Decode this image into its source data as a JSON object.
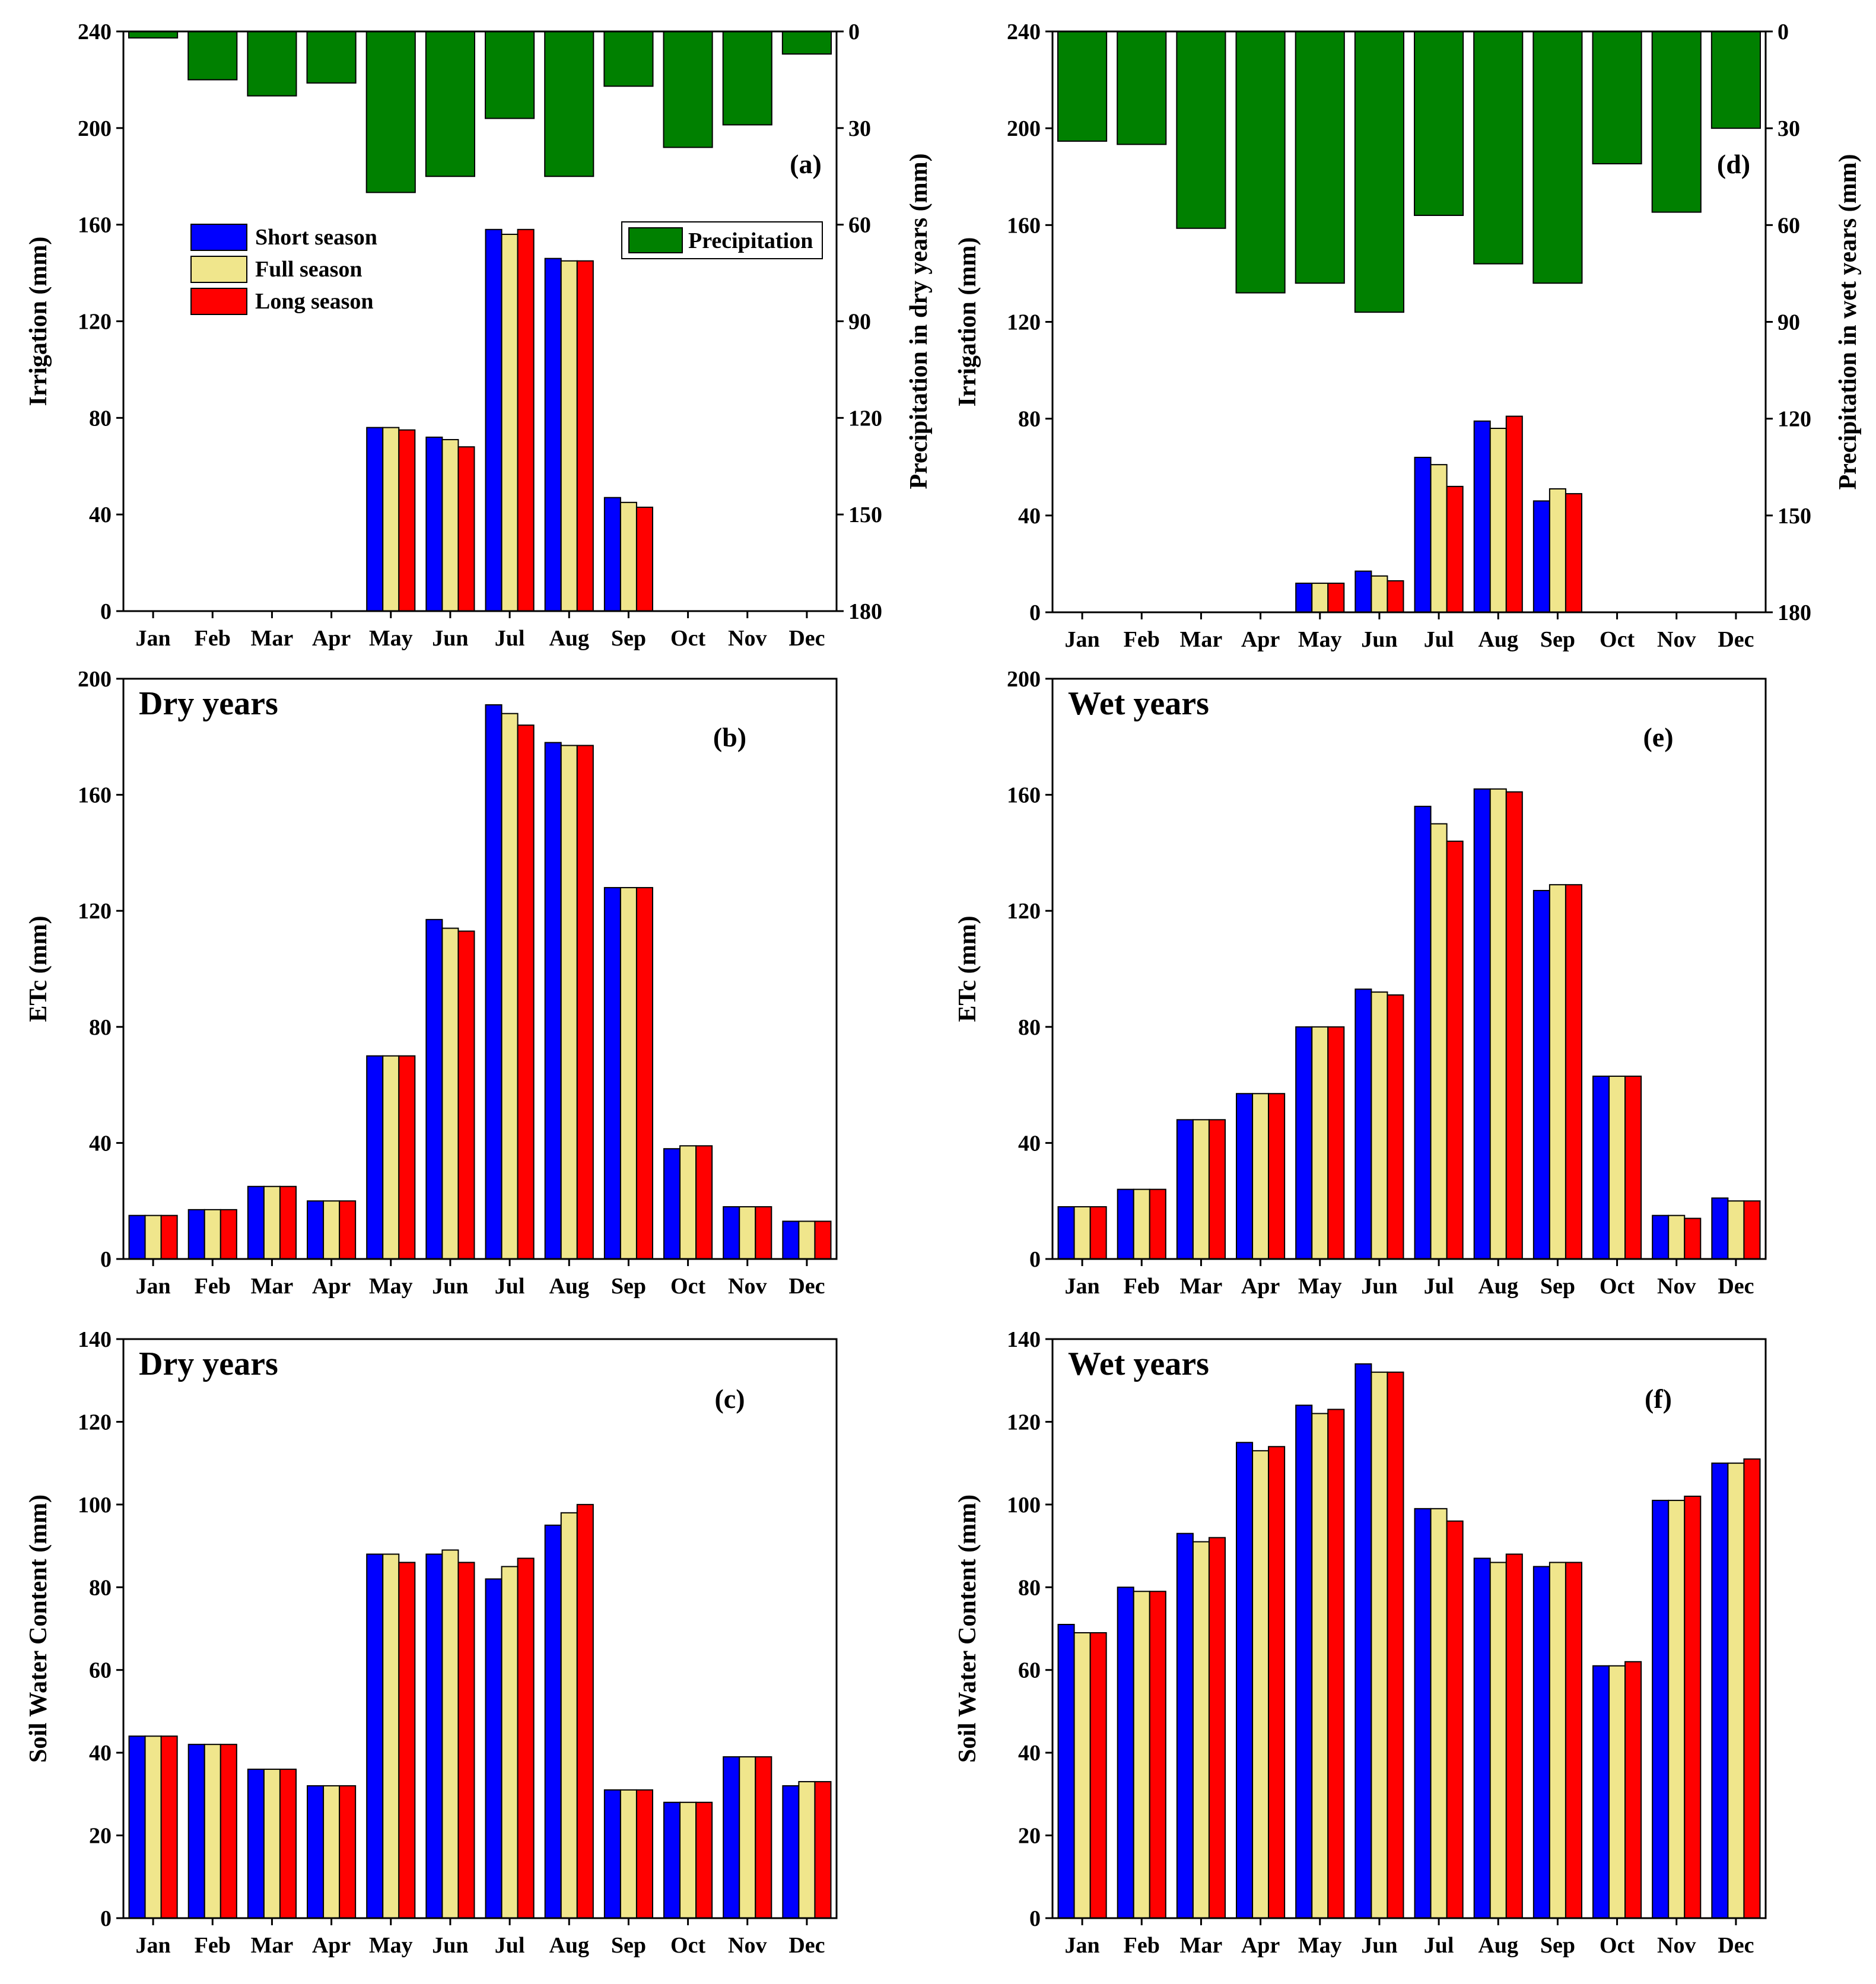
{
  "colors": {
    "short": "#0000ff",
    "full": "#f0e68c",
    "long": "#ff0000",
    "precipitation": "#008000",
    "axis": "#000000"
  },
  "legend": {
    "short": "Short season",
    "full": "Full season",
    "long": "Long season",
    "precipitation": "Precipitation"
  },
  "chart_data": [
    {
      "id": "a",
      "type": "bar",
      "panel_label": "(a)",
      "title": "",
      "categories": [
        "Jan",
        "Feb",
        "Mar",
        "Apr",
        "May",
        "Jun",
        "Jul",
        "Aug",
        "Sep",
        "Oct",
        "Nov",
        "Dec"
      ],
      "ylabel": "Irrigation (mm)",
      "ylim": [
        0,
        240
      ],
      "yticks": [
        0,
        40,
        80,
        120,
        160,
        200,
        240
      ],
      "series": [
        {
          "name": "Short season",
          "key": "short",
          "values": [
            0,
            0,
            0,
            0,
            76,
            72,
            158,
            146,
            47,
            0,
            0,
            0
          ]
        },
        {
          "name": "Full season",
          "key": "full",
          "values": [
            0,
            0,
            0,
            0,
            76,
            71,
            156,
            145,
            45,
            0,
            0,
            0
          ]
        },
        {
          "name": "Long season",
          "key": "long",
          "values": [
            0,
            0,
            0,
            0,
            75,
            68,
            158,
            145,
            43,
            0,
            0,
            0
          ]
        }
      ],
      "secondary": {
        "name": "Precipitation",
        "ylabel": "Precipitation in dry years (mm)",
        "ylim": [
          0,
          180
        ],
        "yticks": [
          0,
          30,
          60,
          90,
          120,
          150,
          180
        ],
        "inverted": true,
        "values": [
          2,
          15,
          20,
          16,
          50,
          45,
          27,
          45,
          17,
          36,
          29,
          7
        ]
      },
      "legend_position": "top-left and top-right"
    },
    {
      "id": "b",
      "type": "bar",
      "panel_label": "(b)",
      "title": "Dry years",
      "categories": [
        "Jan",
        "Feb",
        "Mar",
        "Apr",
        "May",
        "Jun",
        "Jul",
        "Aug",
        "Sep",
        "Oct",
        "Nov",
        "Dec"
      ],
      "ylabel": "ETc (mm)",
      "ylim": [
        0,
        200
      ],
      "yticks": [
        0,
        40,
        80,
        120,
        160,
        200
      ],
      "series": [
        {
          "name": "Short season",
          "key": "short",
          "values": [
            15,
            17,
            25,
            20,
            70,
            117,
            191,
            178,
            128,
            38,
            18,
            13
          ]
        },
        {
          "name": "Full season",
          "key": "full",
          "values": [
            15,
            17,
            25,
            20,
            70,
            114,
            188,
            177,
            128,
            39,
            18,
            13
          ]
        },
        {
          "name": "Long season",
          "key": "long",
          "values": [
            15,
            17,
            25,
            20,
            70,
            113,
            184,
            177,
            128,
            39,
            18,
            13
          ]
        }
      ]
    },
    {
      "id": "c",
      "type": "bar",
      "panel_label": "(c)",
      "title": "Dry years",
      "categories": [
        "Jan",
        "Feb",
        "Mar",
        "Apr",
        "May",
        "Jun",
        "Jul",
        "Aug",
        "Sep",
        "Oct",
        "Nov",
        "Dec"
      ],
      "ylabel": "Soil Water Content (mm)",
      "ylim": [
        0,
        140
      ],
      "yticks": [
        0,
        20,
        40,
        60,
        80,
        100,
        120,
        140
      ],
      "series": [
        {
          "name": "Short season",
          "key": "short",
          "values": [
            44,
            42,
            36,
            32,
            88,
            88,
            82,
            95,
            31,
            28,
            39,
            32
          ]
        },
        {
          "name": "Full season",
          "key": "full",
          "values": [
            44,
            42,
            36,
            32,
            88,
            89,
            85,
            98,
            31,
            28,
            39,
            33
          ]
        },
        {
          "name": "Long season",
          "key": "long",
          "values": [
            44,
            42,
            36,
            32,
            86,
            86,
            87,
            100,
            31,
            28,
            39,
            33
          ]
        }
      ]
    },
    {
      "id": "d",
      "type": "bar",
      "panel_label": "(d)",
      "title": "",
      "categories": [
        "Jan",
        "Feb",
        "Mar",
        "Apr",
        "May",
        "Jun",
        "Jul",
        "Aug",
        "Sep",
        "Oct",
        "Nov",
        "Dec"
      ],
      "ylabel": "Irrigation (mm)",
      "ylim": [
        0,
        240
      ],
      "yticks": [
        0,
        40,
        80,
        120,
        160,
        200,
        240
      ],
      "series": [
        {
          "name": "Short season",
          "key": "short",
          "values": [
            0,
            0,
            0,
            0,
            12,
            17,
            64,
            79,
            46,
            0,
            0,
            0
          ]
        },
        {
          "name": "Full season",
          "key": "full",
          "values": [
            0,
            0,
            0,
            0,
            12,
            15,
            61,
            76,
            51,
            0,
            0,
            0
          ]
        },
        {
          "name": "Long season",
          "key": "long",
          "values": [
            0,
            0,
            0,
            0,
            12,
            13,
            52,
            81,
            49,
            0,
            0,
            0
          ]
        }
      ],
      "secondary": {
        "name": "Precipitation",
        "ylabel": "Precipitation in wet years (mm)",
        "ylim": [
          0,
          180
        ],
        "yticks": [
          0,
          30,
          60,
          90,
          120,
          150,
          180
        ],
        "inverted": true,
        "values": [
          34,
          35,
          61,
          81,
          78,
          87,
          57,
          72,
          78,
          41,
          56,
          30
        ]
      }
    },
    {
      "id": "e",
      "type": "bar",
      "panel_label": "(e)",
      "title": "Wet years",
      "categories": [
        "Jan",
        "Feb",
        "Mar",
        "Apr",
        "May",
        "Jun",
        "Jul",
        "Aug",
        "Sep",
        "Oct",
        "Nov",
        "Dec"
      ],
      "ylabel": "ETc (mm)",
      "ylim": [
        0,
        200
      ],
      "yticks": [
        0,
        40,
        80,
        120,
        160,
        200
      ],
      "series": [
        {
          "name": "Short season",
          "key": "short",
          "values": [
            18,
            24,
            48,
            57,
            80,
            93,
            156,
            162,
            127,
            63,
            15,
            21
          ]
        },
        {
          "name": "Full season",
          "key": "full",
          "values": [
            18,
            24,
            48,
            57,
            80,
            92,
            150,
            162,
            129,
            63,
            15,
            20
          ]
        },
        {
          "name": "Long season",
          "key": "long",
          "values": [
            18,
            24,
            48,
            57,
            80,
            91,
            144,
            161,
            129,
            63,
            14,
            20
          ]
        }
      ]
    },
    {
      "id": "f",
      "type": "bar",
      "panel_label": "(f)",
      "title": "Wet years",
      "categories": [
        "Jan",
        "Feb",
        "Mar",
        "Apr",
        "May",
        "Jun",
        "Jul",
        "Aug",
        "Sep",
        "Oct",
        "Nov",
        "Dec"
      ],
      "ylabel": "Soil Water Content (mm)",
      "ylim": [
        0,
        140
      ],
      "yticks": [
        0,
        20,
        40,
        60,
        80,
        100,
        120,
        140
      ],
      "series": [
        {
          "name": "Short season",
          "key": "short",
          "values": [
            71,
            80,
            93,
            115,
            124,
            134,
            99,
            87,
            85,
            61,
            101,
            110
          ]
        },
        {
          "name": "Full season",
          "key": "full",
          "values": [
            69,
            79,
            91,
            113,
            122,
            132,
            99,
            86,
            86,
            61,
            101,
            110
          ]
        },
        {
          "name": "Long season",
          "key": "long",
          "values": [
            69,
            79,
            92,
            114,
            123,
            132,
            96,
            88,
            86,
            62,
            102,
            111
          ]
        }
      ]
    }
  ]
}
